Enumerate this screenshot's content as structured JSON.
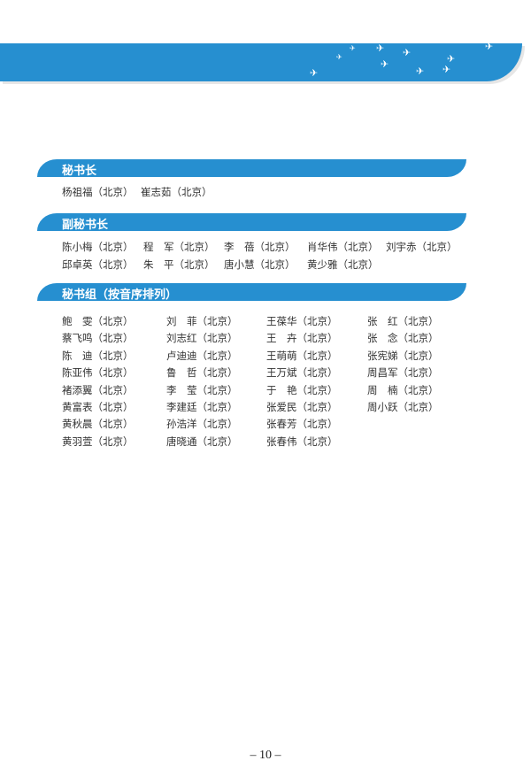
{
  "sections": [
    {
      "title": "秘书长",
      "names": [
        "杨祖福（北京）",
        "崔志茹（北京）"
      ]
    },
    {
      "title": "副秘书长",
      "rows": [
        [
          "陈小梅（北京）",
          "程　军（北京）",
          "李　蓓（北京）",
          "肖华伟（北京）",
          "刘宇赤（北京）"
        ],
        [
          "邱卓英（北京）",
          "朱　平（北京）",
          "唐小慧（北京）",
          "黄少雅（北京）"
        ]
      ]
    },
    {
      "title": "秘书组（按音序排列）",
      "columns": [
        [
          "鲍　雯（北京）",
          "蔡飞鸣（北京）",
          "陈　迪（北京）",
          "陈亚伟（北京）",
          "褚添翼（北京）",
          "黄富表（北京）",
          "黄秋晨（北京）",
          "黄羽萱（北京）"
        ],
        [
          "刘　菲（北京）",
          "刘志红（北京）",
          "卢迪迪（北京）",
          "鲁　哲（北京）",
          "李　莹（北京）",
          "李建廷（北京）",
          "孙浩洋（北京）",
          "唐晓通（北京）"
        ],
        [
          "王葆华（北京）",
          "王　卉（北京）",
          "王萌萌（北京）",
          "王万斌（北京）",
          "于　艳（北京）",
          "张爱民（北京）",
          "张春芳（北京）",
          "张春伟（北京）"
        ],
        [
          "张　红（北京）",
          "张　念（北京）",
          "张宪娣（北京）",
          "周昌军（北京）",
          "周　楠（北京）",
          "周小跃（北京）"
        ]
      ]
    }
  ],
  "page_number": "– 10 –",
  "colors": {
    "accent": "#268fd0"
  }
}
